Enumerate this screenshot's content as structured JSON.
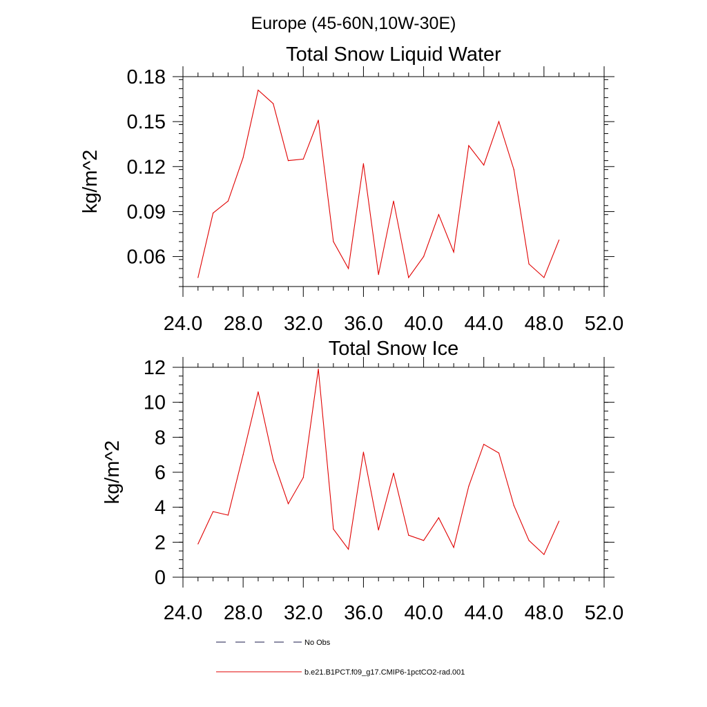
{
  "figure_title": "Europe (45-60N,10W-30E)",
  "legend": [
    {
      "label": "No Obs",
      "style": "dashed",
      "color": "#1a1a4a"
    },
    {
      "label": "b.e21.B1PCT.f09_g17.CMIP6-1pctCO2-rad.001",
      "style": "solid",
      "color": "#e00000"
    }
  ],
  "chart_data": [
    {
      "type": "line",
      "title": "Total Snow Liquid Water",
      "xlabel": "",
      "ylabel": "kg/m^2",
      "xlim": [
        24.0,
        52.0
      ],
      "ylim": [
        0.04,
        0.18
      ],
      "x_ticks": [
        "24.0",
        "28.0",
        "32.0",
        "36.0",
        "40.0",
        "44.0",
        "48.0",
        "52.0"
      ],
      "y_ticks": [
        "0.06",
        "0.09",
        "0.12",
        "0.15",
        "0.18"
      ],
      "grid": false,
      "series": [
        {
          "name": "b.e21.B1PCT.f09_g17.CMIP6-1pctCO2-rad.001",
          "color": "#e00000",
          "x": [
            25,
            26,
            27,
            28,
            29,
            30,
            31,
            32,
            33,
            34,
            35,
            36,
            37,
            38,
            39,
            40,
            41,
            42,
            43,
            44,
            45,
            46,
            47,
            48,
            49
          ],
          "y": [
            0.046,
            0.089,
            0.097,
            0.126,
            0.171,
            0.162,
            0.124,
            0.125,
            0.151,
            0.07,
            0.052,
            0.122,
            0.048,
            0.097,
            0.046,
            0.06,
            0.088,
            0.063,
            0.134,
            0.121,
            0.15,
            0.118,
            0.055,
            0.046,
            0.071
          ]
        }
      ]
    },
    {
      "type": "line",
      "title": "Total Snow Ice",
      "xlabel": "",
      "ylabel": "kg/m^2",
      "xlim": [
        24.0,
        52.0
      ],
      "ylim": [
        0,
        12
      ],
      "x_ticks": [
        "24.0",
        "28.0",
        "32.0",
        "36.0",
        "40.0",
        "44.0",
        "48.0",
        "52.0"
      ],
      "y_ticks": [
        "0",
        "2",
        "4",
        "6",
        "8",
        "10",
        "12"
      ],
      "grid": false,
      "series": [
        {
          "name": "b.e21.B1PCT.f09_g17.CMIP6-1pctCO2-rad.001",
          "color": "#e00000",
          "x": [
            25,
            26,
            27,
            28,
            29,
            30,
            31,
            32,
            33,
            34,
            35,
            36,
            37,
            38,
            39,
            40,
            41,
            42,
            43,
            44,
            45,
            46,
            47,
            48,
            49
          ],
          "y": [
            1.9,
            3.75,
            3.55,
            7.0,
            10.6,
            6.7,
            4.2,
            5.7,
            11.9,
            2.75,
            1.6,
            7.15,
            2.7,
            5.95,
            2.4,
            2.1,
            3.4,
            1.7,
            5.2,
            7.6,
            7.1,
            4.1,
            2.1,
            1.3,
            3.2
          ]
        }
      ]
    }
  ]
}
